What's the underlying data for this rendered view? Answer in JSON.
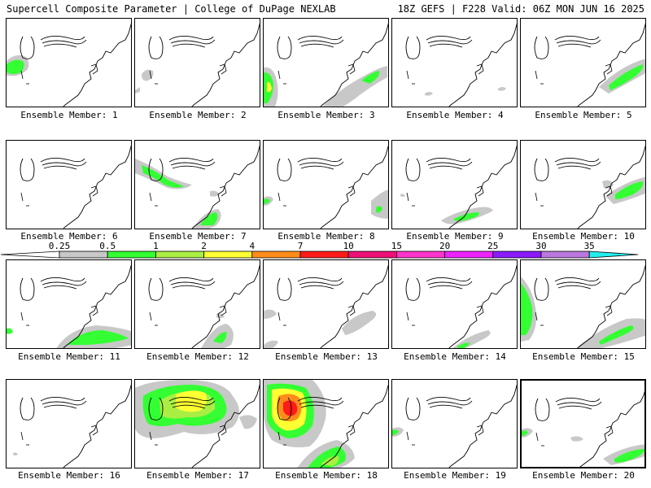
{
  "header": {
    "left_title": "Supercell Composite Parameter | College of DuPage NEXLAB",
    "right_title": "18Z GEFS | F228 Valid: 06Z MON JUN 16 2025"
  },
  "colorbar": {
    "labels": [
      "0.25",
      "0.5",
      "1",
      "2",
      "4",
      "7",
      "10",
      "15",
      "20",
      "25",
      "30",
      "35"
    ],
    "colors": [
      "#ffffff",
      "#c8c8c8",
      "#33ff33",
      "#aaee44",
      "#ffff33",
      "#ff8c1a",
      "#ff1a1a",
      "#ee1077",
      "#ff33cc",
      "#ee22ff",
      "#8b1aff",
      "#bb77dd",
      "#22eeee"
    ]
  },
  "panels": [
    {
      "label": "Ensemble Member: 1"
    },
    {
      "label": "Ensemble Member: 2"
    },
    {
      "label": "Ensemble Member: 3"
    },
    {
      "label": "Ensemble Member: 4"
    },
    {
      "label": "Ensemble Member: 5"
    },
    {
      "label": "Ensemble Member: 6"
    },
    {
      "label": "Ensemble Member: 7"
    },
    {
      "label": "Ensemble Member: 8"
    },
    {
      "label": "Ensemble Member: 9"
    },
    {
      "label": "Ensemble Member: 10"
    },
    {
      "label": "Ensemble Member: 11"
    },
    {
      "label": "Ensemble Member: 12"
    },
    {
      "label": "Ensemble Member: 13"
    },
    {
      "label": "Ensemble Member: 14"
    },
    {
      "label": "Ensemble Member: 15"
    },
    {
      "label": "Ensemble Member: 16"
    },
    {
      "label": "Ensemble Member: 17"
    },
    {
      "label": "Ensemble Member: 18"
    },
    {
      "label": "Ensemble Member: 19"
    },
    {
      "label": "Ensemble Member: 20"
    }
  ]
}
